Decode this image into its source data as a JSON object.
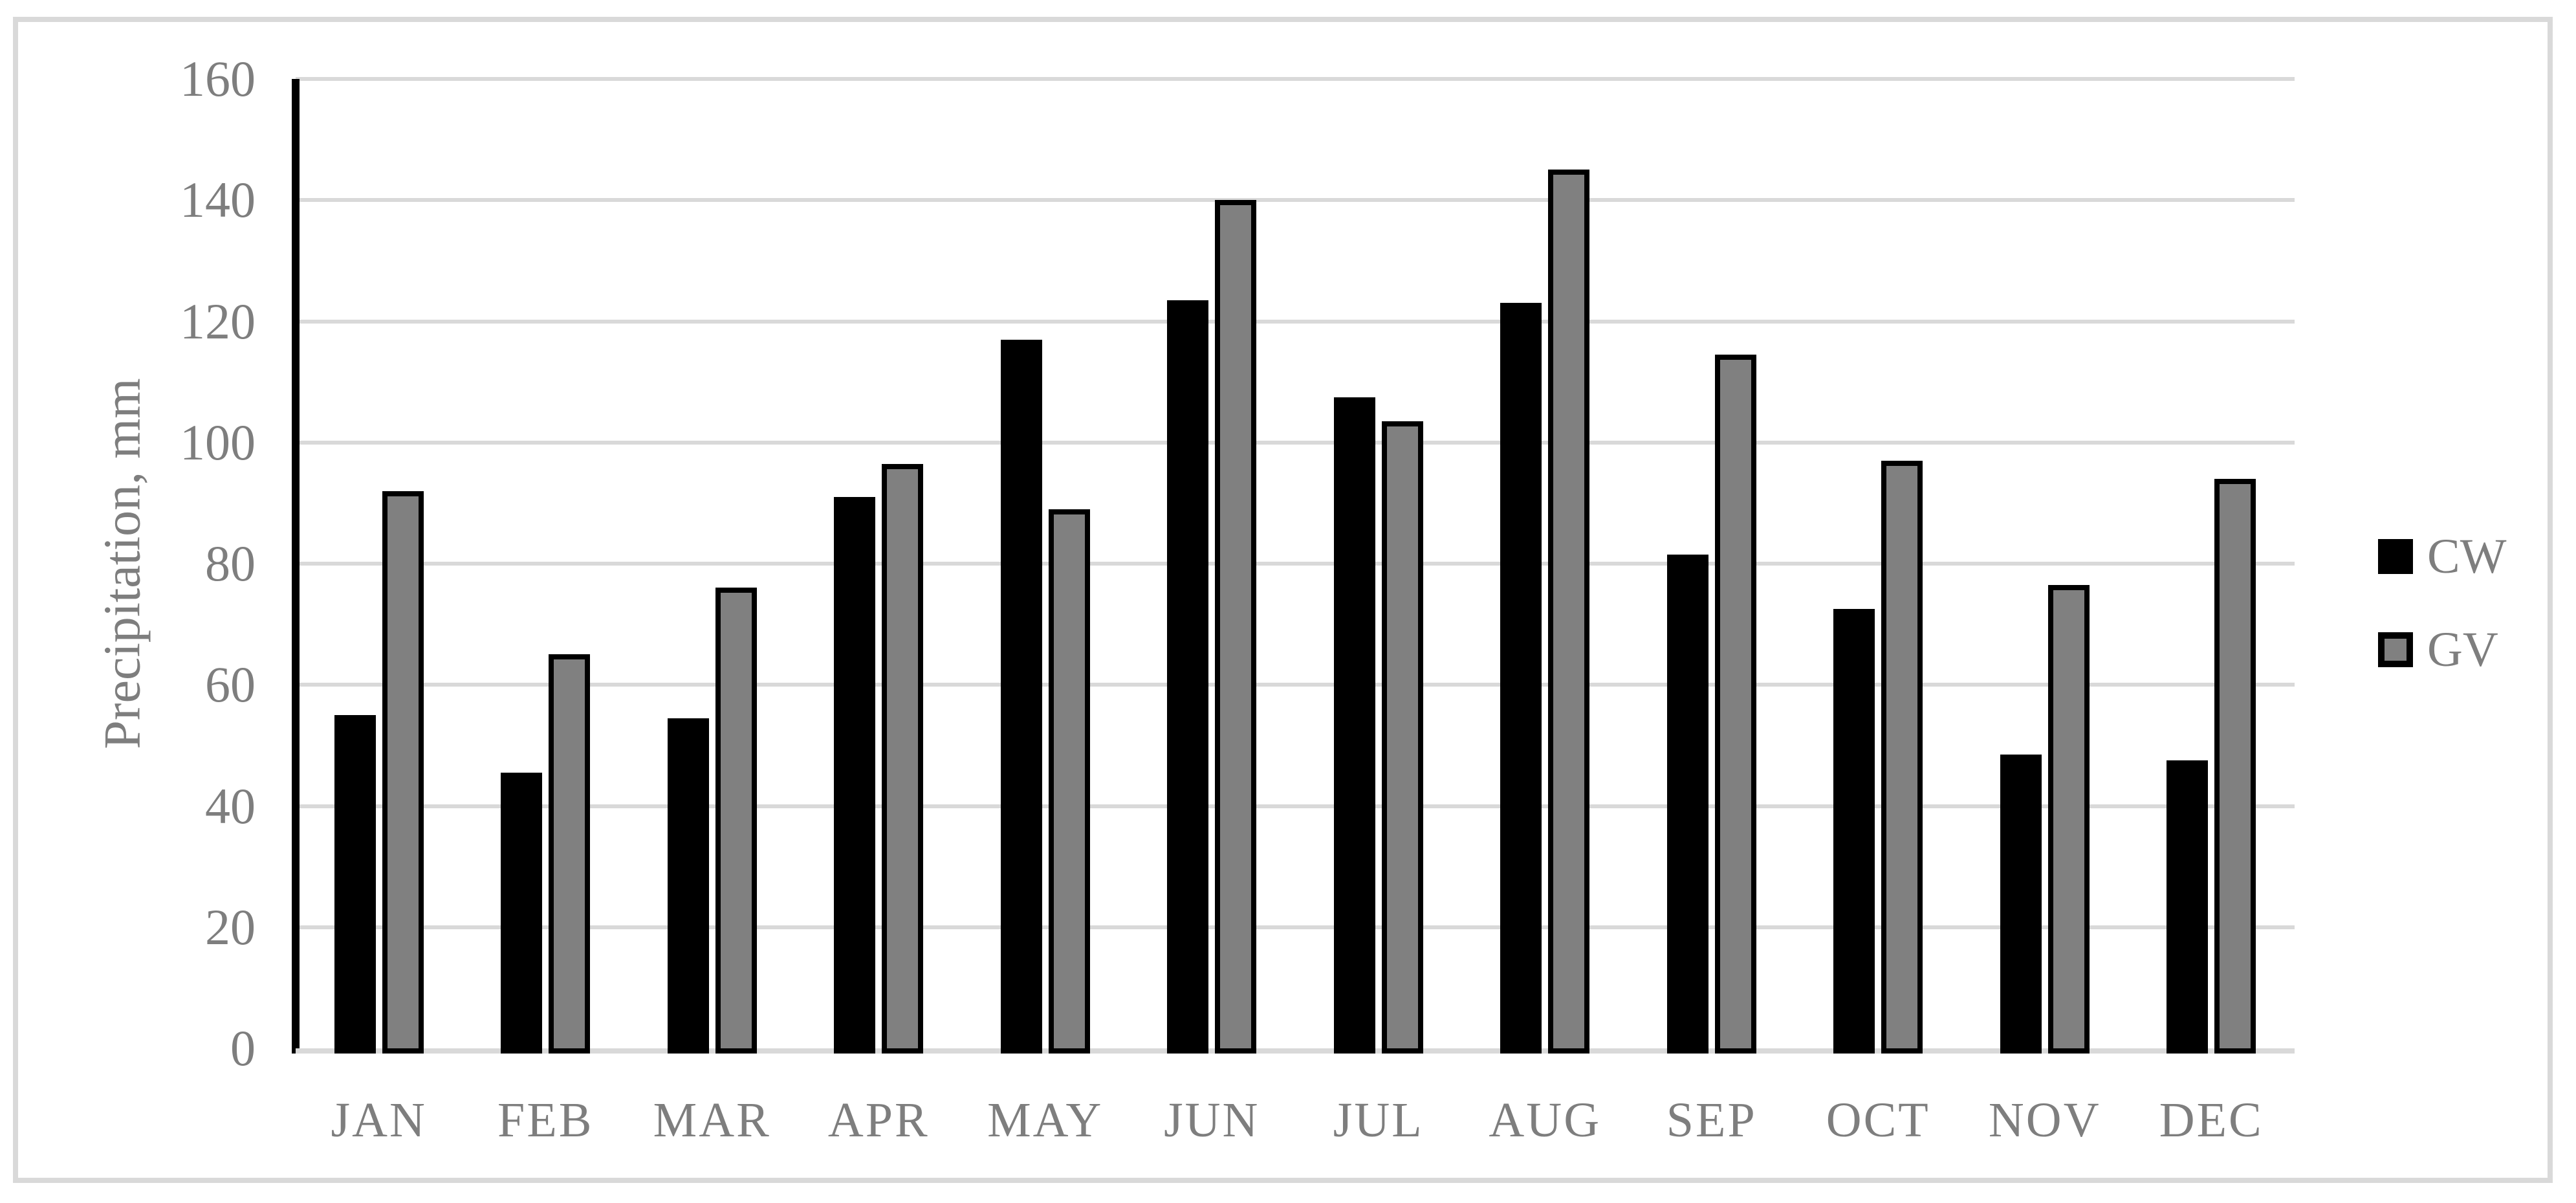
{
  "chart_data": {
    "type": "bar",
    "title": "",
    "xlabel": "",
    "ylabel": "Precipitation, mm",
    "categories": [
      "JAN",
      "FEB",
      "MAR",
      "APR",
      "MAY",
      "JUN",
      "JUL",
      "AUG",
      "SEP",
      "OCT",
      "NOV",
      "DEC"
    ],
    "series": [
      {
        "name": "CW",
        "color": "#000000",
        "values": [
          55,
          45.5,
          54.5,
          91,
          117,
          123.5,
          107.5,
          123,
          81.5,
          72.5,
          48.5,
          47.5
        ]
      },
      {
        "name": "GV",
        "color": "#808080",
        "values": [
          92,
          65,
          76,
          96.5,
          89,
          140,
          103.5,
          145,
          114.5,
          97,
          76.5,
          94
        ]
      }
    ],
    "ylim": [
      0,
      160
    ],
    "ytick_step": 20,
    "grid": true,
    "legend_position": "right",
    "colors": {
      "grid": "#D9D9D9",
      "frame": "#D9D9D9",
      "axis": "#000000",
      "text": "#7E7E7E"
    }
  }
}
